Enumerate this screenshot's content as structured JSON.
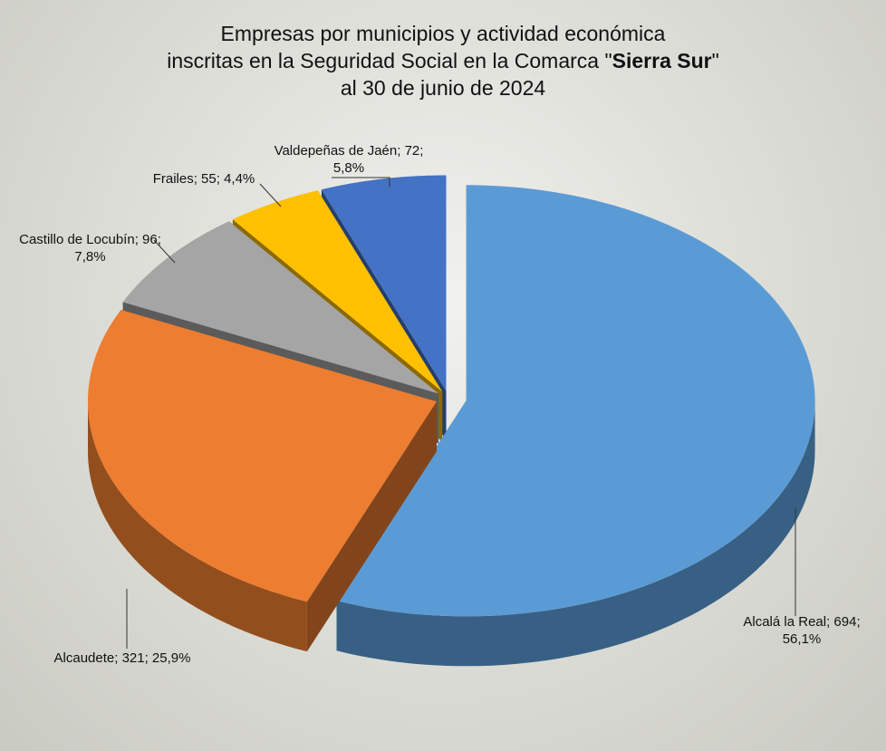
{
  "chart_data": {
    "type": "pie3d",
    "title": [
      "Empresas por municipios y actividad económica",
      "inscritas en la Seguridad Social en la Comarca \"",
      "Sierra Sur",
      "\"",
      "al 30 de junio de 2024"
    ],
    "values": [
      694,
      321,
      96,
      55,
      72
    ],
    "value_labels": [
      "Alcalá la Real; 694; 56,1%",
      "Alcaudete; 321; 25,9%",
      "Castillo de Locubín; 96; 7,8%",
      "Frailes; 55; 4,4%",
      "Valdepeñas de Jaén; 72; 5,8%"
    ],
    "colors": [
      "#5b9bd5",
      "#ed7d31",
      "#a5a5a5",
      "#ffc000",
      "#4472c4"
    ]
  }
}
